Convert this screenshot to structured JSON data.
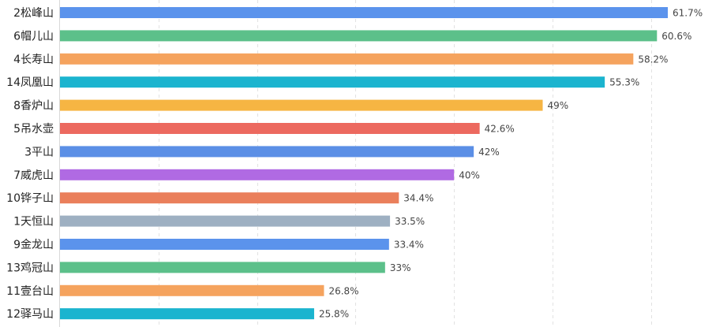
{
  "chart_data": {
    "type": "bar",
    "orientation": "horizontal",
    "categories": [
      "2松峰山",
      "6帽儿山",
      "4长寿山",
      "14凤凰山",
      "8香炉山",
      "5吊水壶",
      "3平山",
      "7威虎山",
      "10铧子山",
      "1天恒山",
      "9金龙山",
      "13鸡冠山",
      "11壹台山",
      "12驿马山"
    ],
    "values": [
      61.7,
      60.6,
      58.2,
      55.3,
      49,
      42.6,
      42,
      40,
      34.4,
      33.5,
      33.4,
      33,
      26.8,
      25.8
    ],
    "value_labels": [
      "61.7%",
      "60.6%",
      "58.2%",
      "55.3%",
      "49%",
      "42.6%",
      "42%",
      "40%",
      "34.4%",
      "33.5%",
      "33.4%",
      "33%",
      "26.8%",
      "25.8%"
    ],
    "colors": [
      "#5b93ec",
      "#5cc08a",
      "#f5a35e",
      "#1bb4cf",
      "#f6b543",
      "#ec695f",
      "#5b8fe6",
      "#b06ae3",
      "#ea7f5b",
      "#9eb0c2",
      "#5b93ec",
      "#5cc08a",
      "#f5a35e",
      "#1bb4cf"
    ],
    "xlim": [
      0,
      70
    ],
    "grid_x_values": [
      10,
      20,
      30,
      40,
      50,
      60,
      67
    ],
    "grid": true,
    "title": "",
    "xlabel": "",
    "ylabel": ""
  }
}
